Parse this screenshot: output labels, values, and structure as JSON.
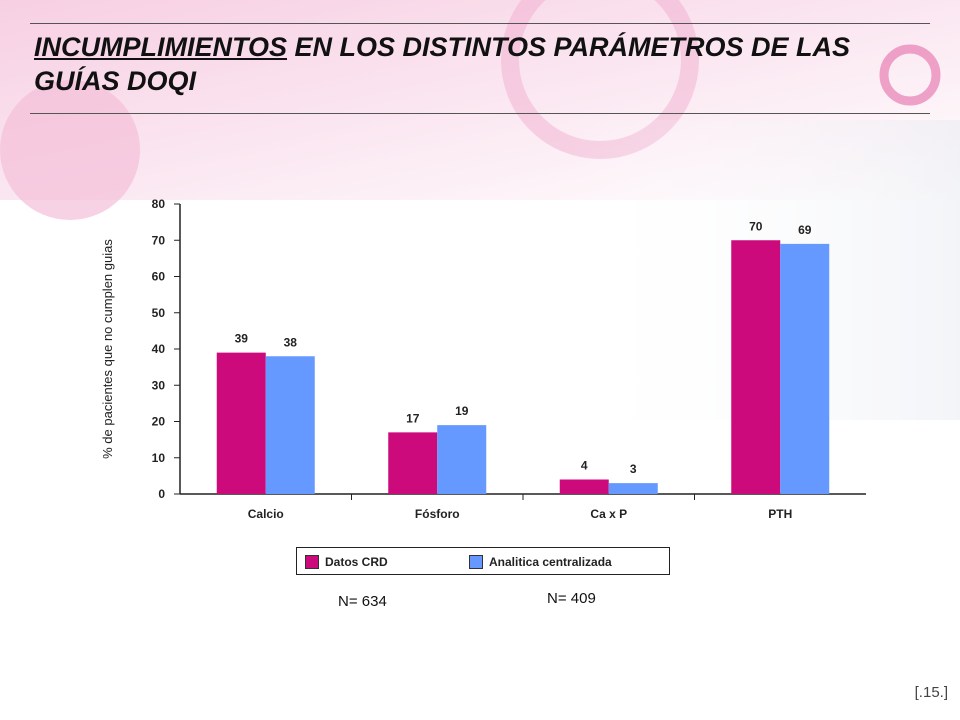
{
  "slide": {
    "title_underlined": "INCUMPLIMIENTOS",
    "title_rest": " EN LOS DISTINTOS PARÁMETROS DE LAS GUÍAS DOQI",
    "n_left": "N= 634",
    "n_right": "N= 409",
    "page_label": "[.15.]"
  },
  "colors": {
    "series_1": "#CC0A7C",
    "series_2": "#6699FF",
    "background_pink": "#F5C9DF"
  },
  "chart_data": {
    "type": "bar",
    "categories": [
      "Calcio",
      "Fósforo",
      "Ca x P",
      "PTH"
    ],
    "series": [
      {
        "name": "Datos CRD",
        "values": [
          39,
          17,
          4,
          70
        ]
      },
      {
        "name": "Analitica centralizada",
        "values": [
          38,
          19,
          3,
          69
        ]
      }
    ],
    "ylabel": "% de pacientes que no cumplen guias",
    "ylim": [
      0,
      80
    ],
    "yticks": [
      "0",
      "10",
      "20",
      "30",
      "40",
      "50",
      "60",
      "70",
      "80"
    ],
    "grid": false,
    "legend_position": "bottom"
  }
}
